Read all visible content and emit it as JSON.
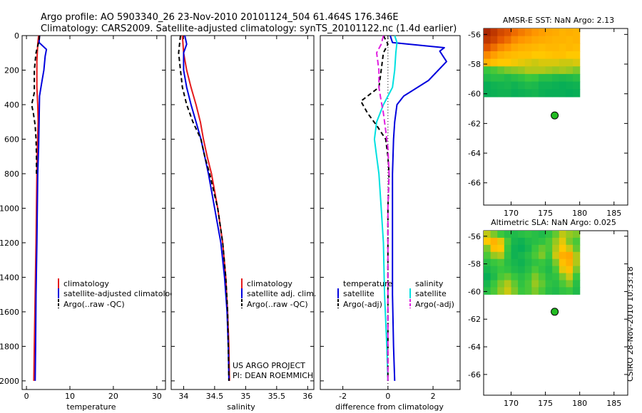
{
  "header": {
    "line1": "Argo profile: AO 5903340_26 23-Nov-2010 20101124_504 61.464S 176.346E",
    "line2": "Climatology: CARS2009. Satellite-adjusted climatology: synTS_20101122.nc (1.4d earlier)"
  },
  "side_label": "CSIRO 28-Nov-2010 10:33:18",
  "colors": {
    "climatology": "#e41a1c",
    "satellite": "#0000dd",
    "argo": "#000000",
    "satellite_salinity": "#00e0e0",
    "argo_adj_salinity": "#e020e0"
  },
  "chart_data": [
    {
      "type": "line",
      "name": "temperature-profile",
      "xlabel": "temperature",
      "xlim": [
        -1,
        32
      ],
      "ylim": [
        2050,
        0
      ],
      "xticks": [
        0,
        10,
        20,
        30
      ],
      "yticks": [
        0,
        200,
        400,
        600,
        800,
        1000,
        1200,
        1400,
        1600,
        1800,
        2000
      ],
      "legend": [
        "climatology",
        "satellite-adjusted climatology",
        "Argo(..raw -QC)"
      ],
      "series": [
        {
          "name": "climatology",
          "color": "#e41a1c",
          "dash": "",
          "points": [
            [
              2.8,
              0
            ],
            [
              2.6,
              50
            ],
            [
              2.4,
              150
            ],
            [
              2.4,
              300
            ],
            [
              2.6,
              400
            ],
            [
              2.7,
              500
            ],
            [
              2.5,
              650
            ],
            [
              2.4,
              800
            ],
            [
              2.3,
              1000
            ],
            [
              2.2,
              1200
            ],
            [
              2.0,
              1500
            ],
            [
              1.8,
              1800
            ],
            [
              1.7,
              2000
            ]
          ]
        },
        {
          "name": "satellite-adjusted climatology",
          "color": "#0000dd",
          "dash": "",
          "points": [
            [
              3.0,
              0
            ],
            [
              2.9,
              40
            ],
            [
              4.6,
              80
            ],
            [
              4.3,
              120
            ],
            [
              4.0,
              200
            ],
            [
              3.6,
              260
            ],
            [
              3.0,
              350
            ],
            [
              2.9,
              500
            ],
            [
              2.8,
              650
            ],
            [
              2.6,
              800
            ],
            [
              2.5,
              1000
            ],
            [
              2.4,
              1200
            ],
            [
              2.2,
              1500
            ],
            [
              2.1,
              1800
            ],
            [
              2.0,
              2000
            ]
          ]
        },
        {
          "name": "Argo(..raw -QC)",
          "color": "#000000",
          "dash": "6,4",
          "points": [
            [
              3.0,
              0
            ],
            [
              2.9,
              30
            ],
            [
              2.6,
              60
            ],
            [
              2.2,
              100
            ],
            [
              1.8,
              200
            ],
            [
              1.8,
              330
            ],
            [
              1.2,
              400
            ],
            [
              1.6,
              450
            ],
            [
              2.0,
              520
            ],
            [
              2.2,
              600
            ],
            [
              2.3,
              700
            ],
            [
              2.3,
              800
            ]
          ]
        }
      ]
    },
    {
      "type": "line",
      "name": "salinity-profile",
      "xlabel": "salinity",
      "xlim": [
        33.8,
        36.1
      ],
      "ylim": [
        2050,
        0
      ],
      "xticks": [
        34,
        34.5,
        35,
        35.5,
        36
      ],
      "legend": [
        "climatology",
        "satellite adj. clim.",
        "Argo(..raw -QC)"
      ],
      "annotation": [
        "US ARGO PROJECT",
        "PI: DEAN ROEMMICH"
      ],
      "series": [
        {
          "name": "climatology",
          "color": "#e41a1c",
          "dash": "",
          "points": [
            [
              33.98,
              0
            ],
            [
              34.0,
              100
            ],
            [
              34.05,
              200
            ],
            [
              34.12,
              300
            ],
            [
              34.2,
              400
            ],
            [
              34.27,
              500
            ],
            [
              34.32,
              600
            ],
            [
              34.38,
              700
            ],
            [
              34.45,
              800
            ],
            [
              34.55,
              1000
            ],
            [
              34.63,
              1200
            ],
            [
              34.68,
              1400
            ],
            [
              34.71,
              1600
            ],
            [
              34.73,
              1800
            ],
            [
              34.74,
              2000
            ]
          ]
        },
        {
          "name": "satellite adj. clim.",
          "color": "#0000dd",
          "dash": "",
          "points": [
            [
              34.02,
              0
            ],
            [
              34.05,
              50
            ],
            [
              34.0,
              100
            ],
            [
              34.0,
              200
            ],
            [
              34.05,
              300
            ],
            [
              34.12,
              400
            ],
            [
              34.2,
              500
            ],
            [
              34.28,
              600
            ],
            [
              34.34,
              700
            ],
            [
              34.4,
              800
            ],
            [
              34.5,
              1000
            ],
            [
              34.6,
              1200
            ],
            [
              34.66,
              1400
            ],
            [
              34.7,
              1600
            ],
            [
              34.72,
              1800
            ],
            [
              34.73,
              2000
            ]
          ]
        },
        {
          "name": "Argo(..raw -QC)",
          "color": "#000000",
          "dash": "6,4",
          "points": [
            [
              33.95,
              0
            ],
            [
              33.92,
              100
            ],
            [
              33.95,
              200
            ],
            [
              33.98,
              300
            ],
            [
              34.05,
              400
            ],
            [
              34.15,
              500
            ],
            [
              34.28,
              600
            ],
            [
              34.34,
              700
            ],
            [
              34.42,
              800
            ],
            [
              34.55,
              1000
            ],
            [
              34.63,
              1200
            ],
            [
              34.68,
              1400
            ],
            [
              34.71,
              1600
            ],
            [
              34.72,
              1800
            ],
            [
              34.73,
              2000
            ]
          ]
        }
      ]
    },
    {
      "type": "line",
      "name": "difference-profile",
      "xlabel": "difference from climatology",
      "xlim": [
        -3.0,
        3.2
      ],
      "ylim": [
        2050,
        0
      ],
      "xticks": [
        -2,
        0,
        2
      ],
      "zero_line": 0,
      "legend": {
        "temperature": "temperature",
        "salinity": "salinity",
        "t_sat": "satellite",
        "t_argo": "Argo(-adj)",
        "s_sat": "satellite",
        "s_argo": "Argo(-adj)"
      },
      "series": [
        {
          "name": "satellite (temperature)",
          "color": "#0000dd",
          "dash": "",
          "points": [
            [
              0.1,
              0
            ],
            [
              0.2,
              40
            ],
            [
              2.5,
              70
            ],
            [
              2.3,
              90
            ],
            [
              2.6,
              150
            ],
            [
              1.8,
              260
            ],
            [
              0.7,
              350
            ],
            [
              0.4,
              400
            ],
            [
              0.3,
              500
            ],
            [
              0.25,
              600
            ],
            [
              0.2,
              800
            ],
            [
              0.2,
              1000
            ],
            [
              0.2,
              1200
            ],
            [
              0.2,
              1500
            ],
            [
              0.25,
              1800
            ],
            [
              0.3,
              2000
            ]
          ]
        },
        {
          "name": "satellite (salinity)",
          "color": "#00e0e0",
          "dash": "",
          "points": [
            [
              0.3,
              0
            ],
            [
              0.4,
              40
            ],
            [
              0.35,
              100
            ],
            [
              0.3,
              200
            ],
            [
              0.2,
              300
            ],
            [
              -0.2,
              400
            ],
            [
              -0.5,
              500
            ],
            [
              -0.6,
              600
            ],
            [
              -0.5,
              700
            ],
            [
              -0.4,
              800
            ],
            [
              -0.3,
              1000
            ],
            [
              -0.2,
              1200
            ],
            [
              -0.15,
              1500
            ],
            [
              -0.05,
              1800
            ],
            [
              0.0,
              2000
            ]
          ]
        },
        {
          "name": "Argo(-adj) (temperature)",
          "color": "#000000",
          "dash": "6,4",
          "points": [
            [
              -0.2,
              0
            ],
            [
              0.0,
              50
            ],
            [
              -0.2,
              100
            ],
            [
              -0.3,
              200
            ],
            [
              -0.4,
              300
            ],
            [
              -1.2,
              380
            ],
            [
              -0.9,
              450
            ],
            [
              -0.5,
              520
            ],
            [
              -0.1,
              600
            ],
            [
              0.0,
              700
            ],
            [
              0.05,
              800
            ],
            [
              0.0,
              1000
            ],
            [
              0.0,
              1500
            ],
            [
              0.0,
              2000
            ]
          ]
        },
        {
          "name": "Argo(-adj) (salinity)",
          "color": "#e020e0",
          "dash": "8,4",
          "points": [
            [
              -0.2,
              0
            ],
            [
              -0.3,
              50
            ],
            [
              -0.5,
              100
            ],
            [
              -0.4,
              200
            ],
            [
              -0.4,
              300
            ],
            [
              -0.3,
              380
            ],
            [
              -0.2,
              450
            ],
            [
              -0.1,
              550
            ],
            [
              0.0,
              650
            ],
            [
              0.05,
              800
            ],
            [
              0.0,
              1000
            ],
            [
              0.0,
              1500
            ],
            [
              0.0,
              2000
            ]
          ]
        }
      ]
    },
    {
      "type": "heatmap",
      "name": "sst-map",
      "title": "AMSR-E SST: NaN Argo: 2.13",
      "xlim": [
        166,
        187
      ],
      "ylim": [
        -67.5,
        -55.6
      ],
      "xticks": [
        170,
        175,
        180,
        185
      ],
      "yticks": [
        -56,
        -58,
        -60,
        -62,
        -64,
        -66
      ],
      "argo_point": {
        "lon": 176.35,
        "lat": -61.46
      },
      "extent": {
        "lon": [
          166,
          180
        ],
        "lat": [
          -60.2,
          -55.6
        ]
      },
      "grid": [
        [
          0.95,
          0.9,
          0.85,
          0.82,
          0.75,
          0.7,
          0.66,
          0.62,
          0.6,
          0.58,
          0.57,
          0.55,
          0.56,
          0.55
        ],
        [
          0.9,
          0.86,
          0.8,
          0.74,
          0.66,
          0.62,
          0.6,
          0.58,
          0.57,
          0.56,
          0.55,
          0.55,
          0.54,
          0.55
        ],
        [
          0.82,
          0.74,
          0.66,
          0.62,
          0.58,
          0.56,
          0.55,
          0.54,
          0.53,
          0.54,
          0.54,
          0.53,
          0.54,
          0.53
        ],
        [
          0.66,
          0.6,
          0.56,
          0.54,
          0.53,
          0.52,
          0.52,
          0.5,
          0.5,
          0.51,
          0.52,
          0.52,
          0.5,
          0.5
        ],
        [
          0.55,
          0.52,
          0.5,
          0.5,
          0.49,
          0.48,
          0.47,
          0.46,
          0.47,
          0.47,
          0.47,
          0.46,
          0.46,
          0.47
        ],
        [
          0.34,
          0.36,
          0.38,
          0.4,
          0.41,
          0.42,
          0.44,
          0.44,
          0.44,
          0.43,
          0.42,
          0.43,
          0.42,
          0.4
        ],
        [
          0.28,
          0.3,
          0.3,
          0.28,
          0.3,
          0.32,
          0.35,
          0.34,
          0.3,
          0.3,
          0.28,
          0.27,
          0.28,
          0.3
        ],
        [
          0.22,
          0.24,
          0.25,
          0.26,
          0.24,
          0.26,
          0.28,
          0.27,
          0.24,
          0.24,
          0.23,
          0.22,
          0.23,
          0.24
        ],
        [
          0.22,
          0.23,
          0.24,
          0.24,
          0.22,
          0.23,
          0.24,
          0.25,
          0.23,
          0.22,
          0.22,
          0.22,
          0.21,
          0.22
        ]
      ]
    },
    {
      "type": "heatmap",
      "name": "sla-map",
      "title": "Altimetric SLA: NaN Argo: 0.025",
      "xlim": [
        166,
        187
      ],
      "ylim": [
        -67.5,
        -55.6
      ],
      "xticks": [
        170,
        175,
        180,
        185
      ],
      "yticks": [
        -56,
        -58,
        -60,
        -62,
        -64,
        -66
      ],
      "argo_point": {
        "lon": 176.35,
        "lat": -61.46
      },
      "extent": {
        "lon": [
          166,
          180
        ],
        "lat": [
          -60.2,
          -55.6
        ]
      },
      "grid": [
        [
          0.45,
          0.4,
          0.35,
          0.3,
          0.28,
          0.3,
          0.32,
          0.3,
          0.28,
          0.32,
          0.38,
          0.45,
          0.42,
          0.4
        ],
        [
          0.5,
          0.55,
          0.48,
          0.36,
          0.26,
          0.24,
          0.28,
          0.3,
          0.32,
          0.36,
          0.42,
          0.48,
          0.4,
          0.36
        ],
        [
          0.4,
          0.52,
          0.5,
          0.34,
          0.24,
          0.22,
          0.26,
          0.34,
          0.38,
          0.36,
          0.44,
          0.5,
          0.46,
          0.38
        ],
        [
          0.36,
          0.42,
          0.44,
          0.32,
          0.24,
          0.26,
          0.3,
          0.36,
          0.4,
          0.34,
          0.46,
          0.56,
          0.58,
          0.44
        ],
        [
          0.3,
          0.34,
          0.36,
          0.3,
          0.26,
          0.24,
          0.28,
          0.32,
          0.34,
          0.3,
          0.4,
          0.52,
          0.56,
          0.44
        ],
        [
          0.26,
          0.3,
          0.34,
          0.32,
          0.28,
          0.26,
          0.3,
          0.36,
          0.32,
          0.28,
          0.36,
          0.48,
          0.52,
          0.4
        ],
        [
          0.22,
          0.28,
          0.36,
          0.38,
          0.34,
          0.3,
          0.34,
          0.4,
          0.36,
          0.3,
          0.32,
          0.4,
          0.46,
          0.34
        ],
        [
          0.26,
          0.34,
          0.4,
          0.44,
          0.38,
          0.32,
          0.36,
          0.42,
          0.38,
          0.32,
          0.3,
          0.36,
          0.4,
          0.3
        ],
        [
          0.3,
          0.36,
          0.42,
          0.46,
          0.4,
          0.34,
          0.36,
          0.4,
          0.36,
          0.3,
          0.28,
          0.32,
          0.34,
          0.28
        ]
      ]
    }
  ]
}
